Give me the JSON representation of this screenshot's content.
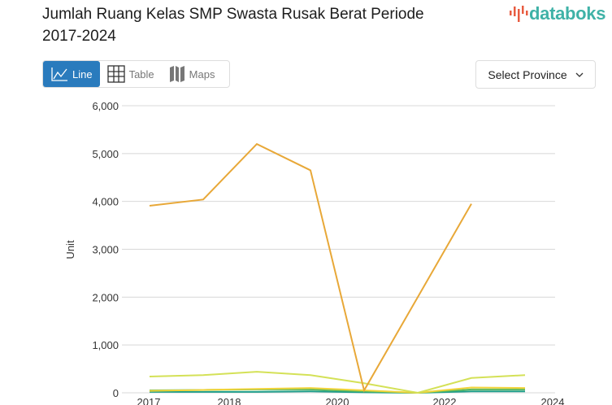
{
  "title": "Jumlah Ruang Kelas SMP Swasta Rusak Berat Periode 2017-2024",
  "logo": "databoks",
  "tabs": [
    {
      "label": "Line",
      "icon": "line-chart-icon",
      "active": true
    },
    {
      "label": "Table",
      "icon": "table-icon",
      "active": false
    },
    {
      "label": "Maps",
      "icon": "map-icon",
      "active": false
    }
  ],
  "select": {
    "label": "Select Province",
    "icon": "chevron-down-icon"
  },
  "colors": {
    "accent": "#2a7bbd",
    "brand": "#3fb2a7"
  },
  "chart_data": {
    "type": "line",
    "ylabel": "Unit",
    "ylim": [
      0,
      6000
    ],
    "yticks": [
      0,
      1000,
      2000,
      3000,
      4000,
      5000,
      6000
    ],
    "ytick_labels": [
      "0",
      "1,000",
      "2,000",
      "3,000",
      "4,000",
      "5,000",
      "6,000"
    ],
    "xtick_labels": [
      "2017",
      "2018",
      "2020",
      "2022",
      "2024"
    ],
    "x": [
      2017,
      2018,
      2019,
      2020,
      2021,
      2022,
      2023,
      2024
    ],
    "grid": true,
    "series": [
      {
        "color": "#e8a838",
        "values": [
          3910,
          4040,
          5200,
          4650,
          50,
          2000,
          3950,
          null
        ]
      },
      {
        "color": "#d4e157",
        "values": [
          340,
          370,
          440,
          370,
          200,
          0,
          310,
          370
        ]
      },
      {
        "color": "#f2d43a",
        "values": [
          40,
          60,
          80,
          100,
          50,
          0,
          110,
          100
        ]
      },
      {
        "color": "#5cb85c",
        "values": [
          50,
          60,
          70,
          70,
          30,
          0,
          70,
          70
        ]
      },
      {
        "color": "#1f9e89",
        "values": [
          20,
          20,
          20,
          30,
          10,
          0,
          30,
          30
        ]
      }
    ]
  }
}
